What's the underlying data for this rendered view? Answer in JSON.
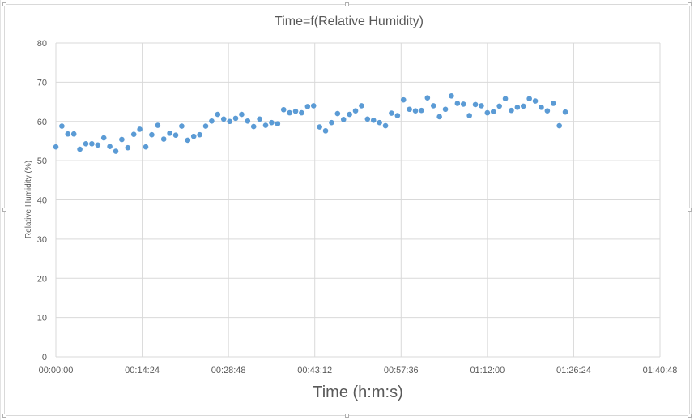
{
  "chart_data": {
    "type": "scatter",
    "title": "Time=f(Relative Humidity)",
    "xlabel": "Time (h:m:s)",
    "ylabel": "Relative Humidity (%)",
    "xlim": [
      "00:00:00",
      "01:40:48"
    ],
    "ylim": [
      0,
      80
    ],
    "x_ticks": [
      "00:00:00",
      "00:14:24",
      "00:28:48",
      "00:43:12",
      "00:57:36",
      "01:12:00",
      "01:26:24",
      "01:40:48"
    ],
    "y_ticks": [
      "0",
      "10",
      "20",
      "30",
      "40",
      "50",
      "60",
      "70",
      "80"
    ],
    "grid": true,
    "legend": "none",
    "marker_color": "#5b9bd5",
    "x_interval_seconds": 60,
    "x_start": "00:00:00",
    "y": [
      53.5,
      58.8,
      56.8,
      56.8,
      52.9,
      54.3,
      54.3,
      54.0,
      55.8,
      53.6,
      52.4,
      55.4,
      53.3,
      56.7,
      58.0,
      53.5,
      56.6,
      59.0,
      55.5,
      57.0,
      56.5,
      58.8,
      55.2,
      56.2,
      56.6,
      58.8,
      60.1,
      61.8,
      60.6,
      60.0,
      60.8,
      61.8,
      60.1,
      58.7,
      60.6,
      59.0,
      59.7,
      59.4,
      63.0,
      62.2,
      62.6,
      62.2,
      63.8,
      64.0,
      58.6,
      57.6,
      59.7,
      62.0,
      60.5,
      61.8,
      62.7,
      64.0,
      60.6,
      60.3,
      59.7,
      58.9,
      62.1,
      61.5,
      65.5,
      63.1,
      62.7,
      62.8,
      66.0,
      64.0,
      61.2,
      63.1,
      66.5,
      64.6,
      64.4,
      61.5,
      64.3,
      64.0,
      62.2,
      62.5,
      63.9,
      65.8,
      62.8,
      63.6,
      63.9,
      65.8,
      65.2,
      63.6,
      62.7,
      64.6,
      58.9,
      62.4
    ]
  }
}
